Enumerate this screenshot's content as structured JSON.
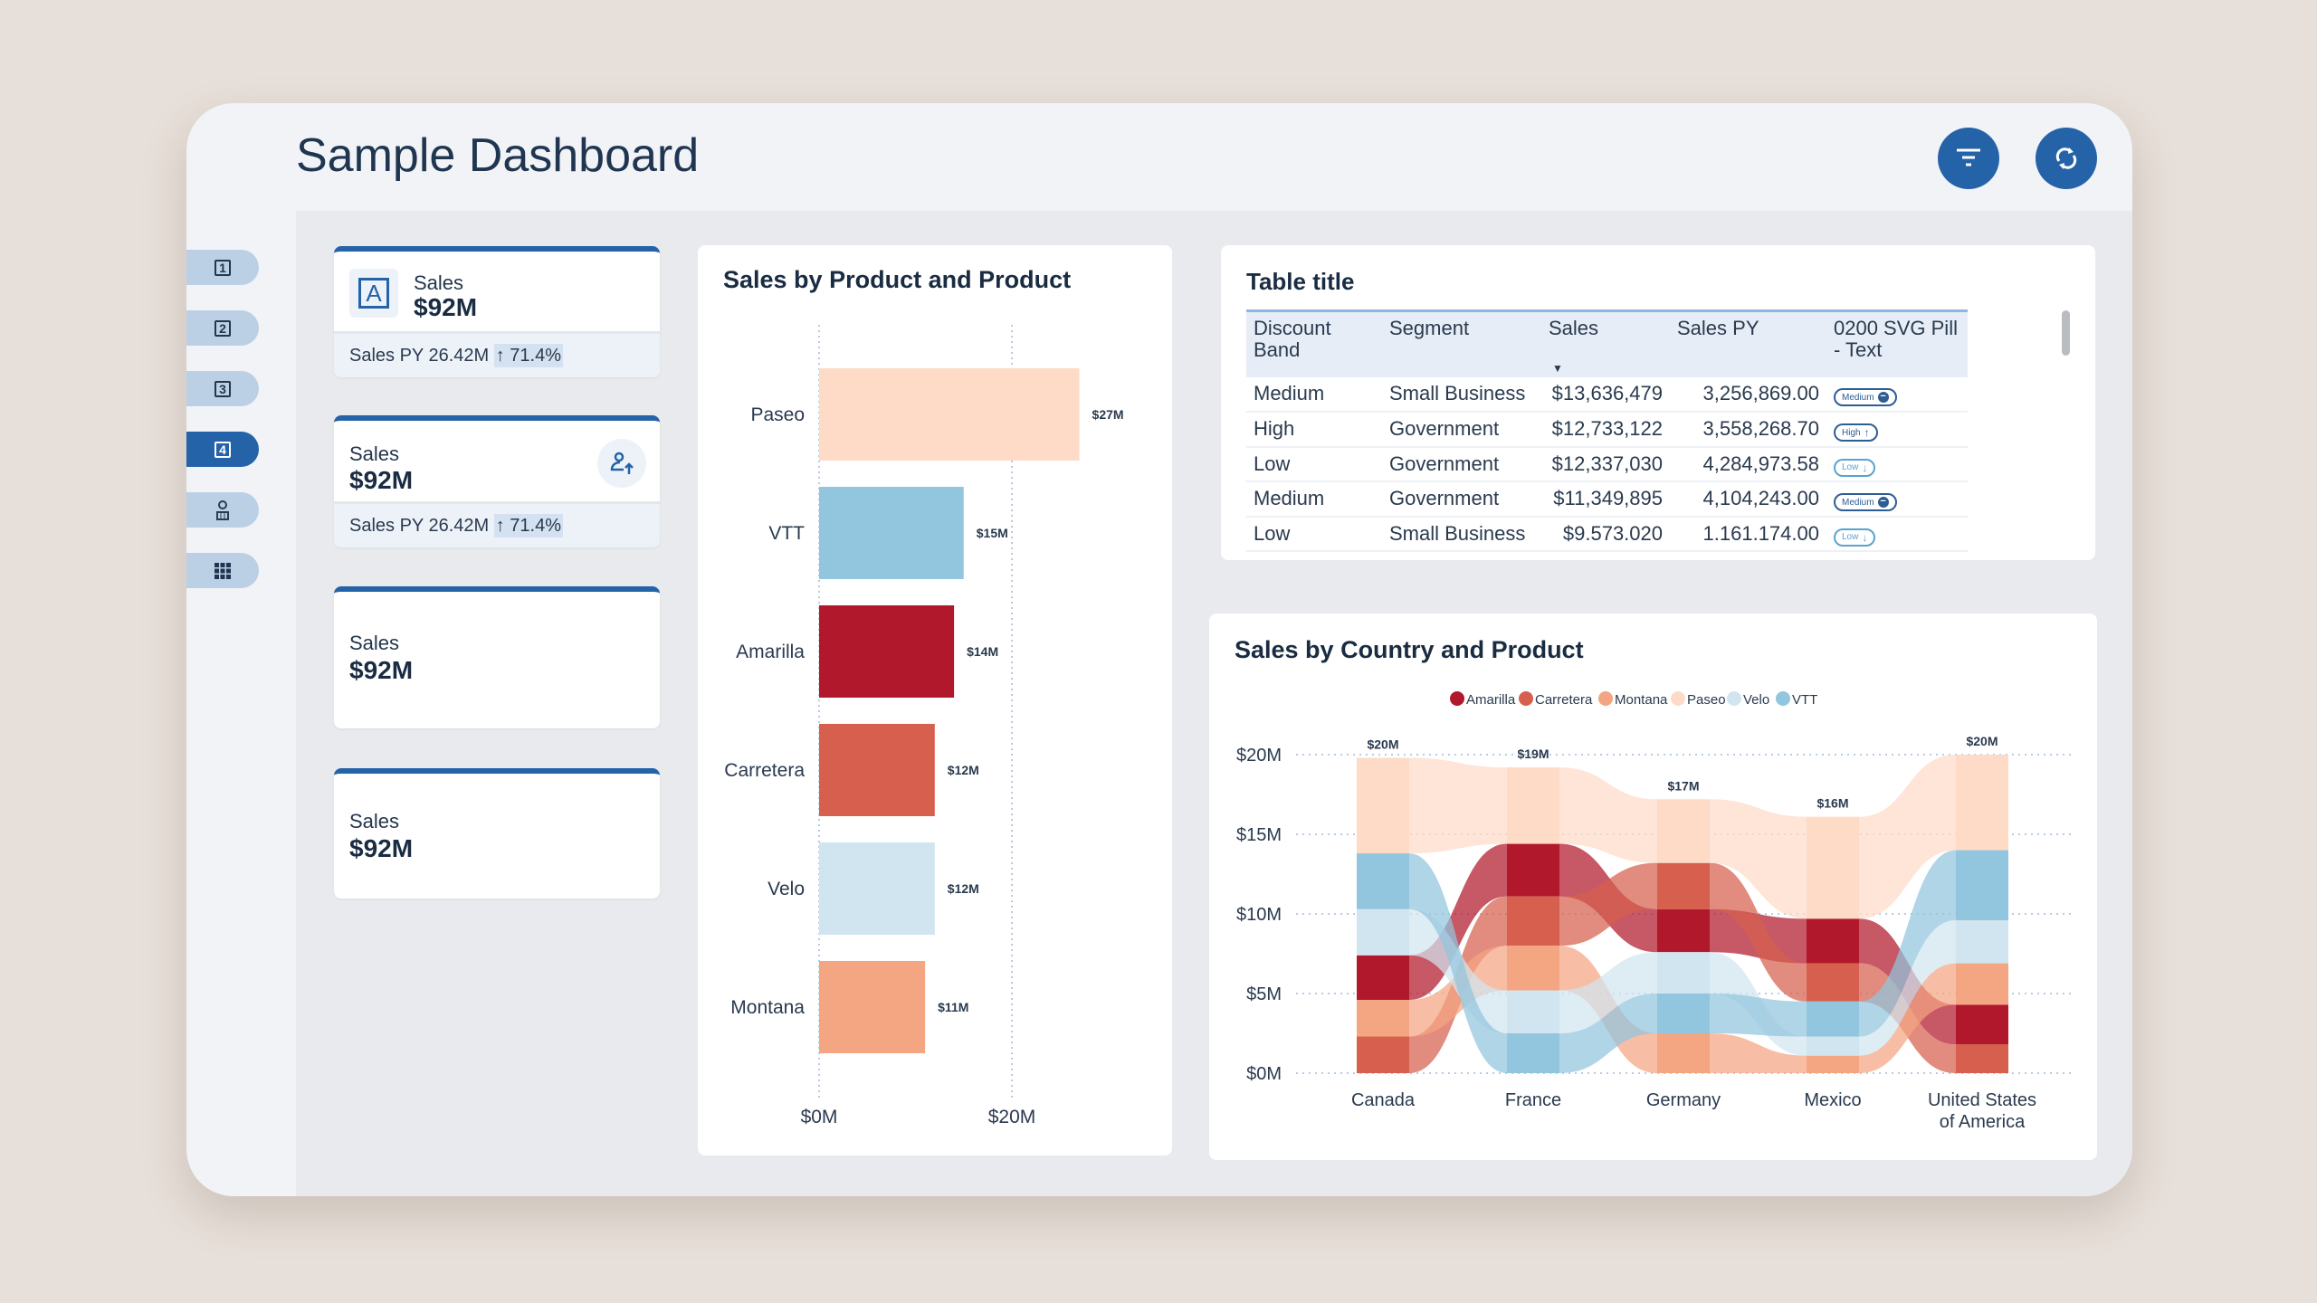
{
  "header": {
    "title": "Sample Dashboard",
    "filter_icon": "filter-icon",
    "refresh_icon": "refresh-icon"
  },
  "sidebar": {
    "items": [
      {
        "label": "1"
      },
      {
        "label": "2"
      },
      {
        "label": "3"
      },
      {
        "label": "4",
        "active": true
      },
      {
        "icon": "money-person-icon"
      },
      {
        "icon": "grid-icon"
      }
    ]
  },
  "kpis": [
    {
      "label": "Sales",
      "value": "$92M",
      "footer": "Sales PY 26.42M",
      "change": "71.4%",
      "icon": "letter-a-icon"
    },
    {
      "label": "Sales",
      "value": "$92M",
      "footer": "Sales PY 26.42M",
      "change": "71.4%",
      "icon": "user-up-icon"
    },
    {
      "label": "Sales",
      "value": "$92M"
    },
    {
      "label": "Sales",
      "value": "$92M"
    }
  ],
  "table": {
    "title": "Table title",
    "columns": [
      "Discount Band",
      "Segment",
      "Sales",
      "Sales PY",
      "0200 SVG Pill - Text"
    ],
    "rows": [
      [
        "Medium",
        "Small Business",
        "$13,636,479",
        "3,256,869.00",
        "Medium"
      ],
      [
        "High",
        "Government",
        "$12,733,122",
        "3,558,268.70",
        "High"
      ],
      [
        "Low",
        "Government",
        "$12,337,030",
        "4,284,973.58",
        "Low"
      ],
      [
        "Medium",
        "Government",
        "$11,349,895",
        "4,104,243.00",
        "Medium"
      ],
      [
        "Low",
        "Small Business",
        "$9.573.020",
        "1.161.174.00",
        "Low"
      ]
    ]
  },
  "chart_data": [
    {
      "type": "bar",
      "title": "Sales by Product and Product",
      "orientation": "horizontal",
      "categories": [
        "Paseo",
        "VTT",
        "Amarilla",
        "Carretera",
        "Velo",
        "Montana"
      ],
      "values": [
        27,
        15,
        14,
        12,
        12,
        11
      ],
      "data_labels": [
        "$27M",
        "$15M",
        "$14M",
        "$12M",
        "$12M",
        "$11M"
      ],
      "colors": [
        "#fddbc7",
        "#92c5de",
        "#b2182b",
        "#d6604d",
        "#d1e5f0",
        "#f4a582"
      ],
      "xticks": [
        "$0M",
        "$20M"
      ],
      "xlim": [
        0,
        20
      ],
      "unit": "$M",
      "grid": true
    },
    {
      "type": "ribbon",
      "title": "Sales by Country and Product",
      "legend_position": "top",
      "categories": [
        "Canada",
        "France",
        "Germany",
        "Mexico",
        "United States of America"
      ],
      "totals_labels": [
        "$20M",
        "$19M",
        "$17M",
        "$16M",
        "$20M"
      ],
      "yticks": [
        "$0M",
        "$5M",
        "$10M",
        "$15M",
        "$20M"
      ],
      "ylim": [
        0,
        20
      ],
      "unit": "$M",
      "grid": true,
      "series": [
        {
          "name": "Amarilla",
          "color": "#b2182b",
          "values": [
            2.8,
            3.3,
            2.7,
            2.8,
            2.5
          ]
        },
        {
          "name": "Carretera",
          "color": "#d6604d",
          "values": [
            2.3,
            3.1,
            2.9,
            2.4,
            1.8
          ]
        },
        {
          "name": "Montana",
          "color": "#f4a582",
          "values": [
            2.3,
            2.8,
            2.5,
            1.1,
            2.6
          ]
        },
        {
          "name": "Paseo",
          "color": "#fddbc7",
          "values": [
            6.0,
            4.8,
            4.0,
            6.4,
            6.0
          ]
        },
        {
          "name": "Velo",
          "color": "#d1e5f0",
          "values": [
            2.9,
            2.7,
            2.6,
            1.2,
            2.7
          ]
        },
        {
          "name": "VTT",
          "color": "#92c5de",
          "values": [
            3.5,
            2.5,
            2.5,
            2.2,
            4.4
          ]
        }
      ]
    }
  ]
}
